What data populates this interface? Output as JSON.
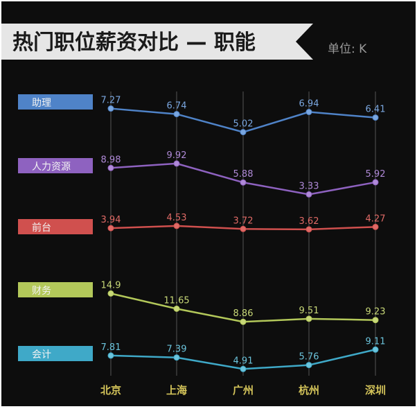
{
  "title": "热门职位薪资对比 — 职能",
  "unit": "单位: K",
  "colors": {
    "background": "#0d0d0d",
    "banner": "#e6e6e6",
    "banner_text": "#1a1a1a",
    "unit_text": "#9a9a9a",
    "category_label": "#d4c45a",
    "grid": "#555555"
  },
  "chart_data": {
    "type": "line",
    "title": "热门职位薪资对比 — 职能",
    "unit": "单位: K",
    "categories": [
      "北京",
      "上海",
      "广州",
      "杭州",
      "深圳"
    ],
    "grid": "vertical",
    "legend": "left",
    "series": [
      {
        "name": "助理",
        "color": "#4f83c8",
        "label_color": "#7aa7e0",
        "values": [
          7.27,
          6.74,
          5.02,
          6.94,
          6.41
        ]
      },
      {
        "name": "人力资源",
        "color": "#8e62c0",
        "label_color": "#b08ad8",
        "values": [
          8.98,
          9.92,
          5.88,
          3.33,
          5.92
        ]
      },
      {
        "name": "前台",
        "color": "#d0504e",
        "label_color": "#e06a66",
        "values": [
          3.94,
          4.53,
          3.72,
          3.62,
          4.27
        ]
      },
      {
        "name": "财务",
        "color": "#b3c85a",
        "label_color": "#c8d878",
        "values": [
          14.9,
          11.65,
          8.86,
          9.51,
          9.23
        ]
      },
      {
        "name": "会计",
        "color": "#3fa9c8",
        "label_color": "#6cc4dc",
        "values": [
          7.81,
          7.39,
          4.91,
          5.76,
          9.11
        ]
      }
    ]
  }
}
